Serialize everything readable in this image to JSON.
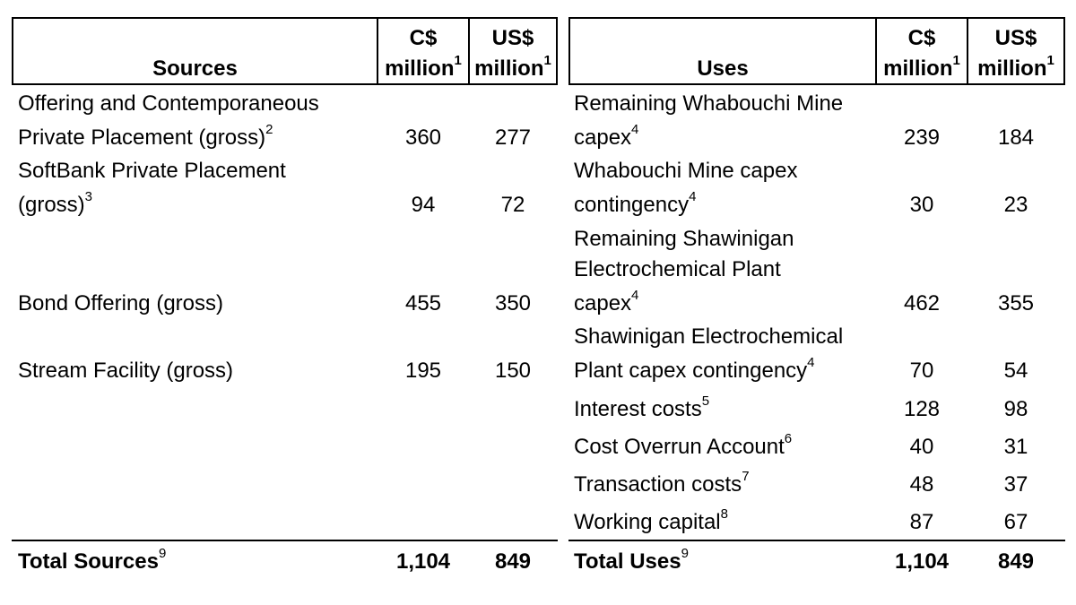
{
  "sources": {
    "header": {
      "label": "Sources",
      "cad_line1": "C$",
      "cad_line2": "million",
      "cad_sup": "1",
      "usd_line1": "US$",
      "usd_line2": "million",
      "usd_sup": "1"
    },
    "rows": [
      {
        "line1": "Offering and Contemporaneous",
        "line2": "Private Placement (gross)",
        "sup": "2",
        "cad": "360",
        "usd": "277"
      },
      {
        "line1": "SoftBank Private Placement",
        "line2": "(gross)",
        "sup": "3",
        "cad": "94",
        "usd": "72"
      },
      {
        "line1": "Bond Offering (gross)",
        "sup": "",
        "cad": "455",
        "usd": "350"
      },
      {
        "line1": "Stream Facility (gross)",
        "sup": "",
        "cad": "195",
        "usd": "150"
      }
    ],
    "total": {
      "label": "Total Sources",
      "sup": "9",
      "cad": "1,104",
      "usd": "849"
    }
  },
  "uses": {
    "header": {
      "label": "Uses",
      "cad_line1": "C$",
      "cad_line2": "million",
      "cad_sup": "1",
      "usd_line1": "US$",
      "usd_line2": "million",
      "usd_sup": "1"
    },
    "rows": [
      {
        "line1": "Remaining Whabouchi Mine",
        "line2": "capex",
        "sup": "4",
        "cad": "239",
        "usd": "184"
      },
      {
        "line1": "Whabouchi Mine capex",
        "line2": "contingency",
        "sup": "4",
        "cad": "30",
        "usd": "23"
      },
      {
        "line1": "Remaining Shawinigan",
        "line2": "Electrochemical Plant",
        "line3": "capex",
        "sup": "4",
        "cad": "462",
        "usd": "355"
      },
      {
        "line1": "Shawinigan Electrochemical",
        "line2": "Plant capex contingency",
        "sup": "4",
        "cad": "70",
        "usd": "54"
      },
      {
        "line1": "Interest costs",
        "sup": "5",
        "cad": "128",
        "usd": "98"
      },
      {
        "line1": "Cost Overrun Account",
        "sup": "6",
        "cad": "40",
        "usd": "31"
      },
      {
        "line1": "Transaction costs",
        "sup": "7",
        "cad": "48",
        "usd": "37"
      },
      {
        "line1": "Working capital",
        "sup": "8",
        "cad": "87",
        "usd": "67"
      }
    ],
    "total": {
      "label": "Total Uses",
      "sup": "9",
      "cad": "1,104",
      "usd": "849"
    }
  }
}
